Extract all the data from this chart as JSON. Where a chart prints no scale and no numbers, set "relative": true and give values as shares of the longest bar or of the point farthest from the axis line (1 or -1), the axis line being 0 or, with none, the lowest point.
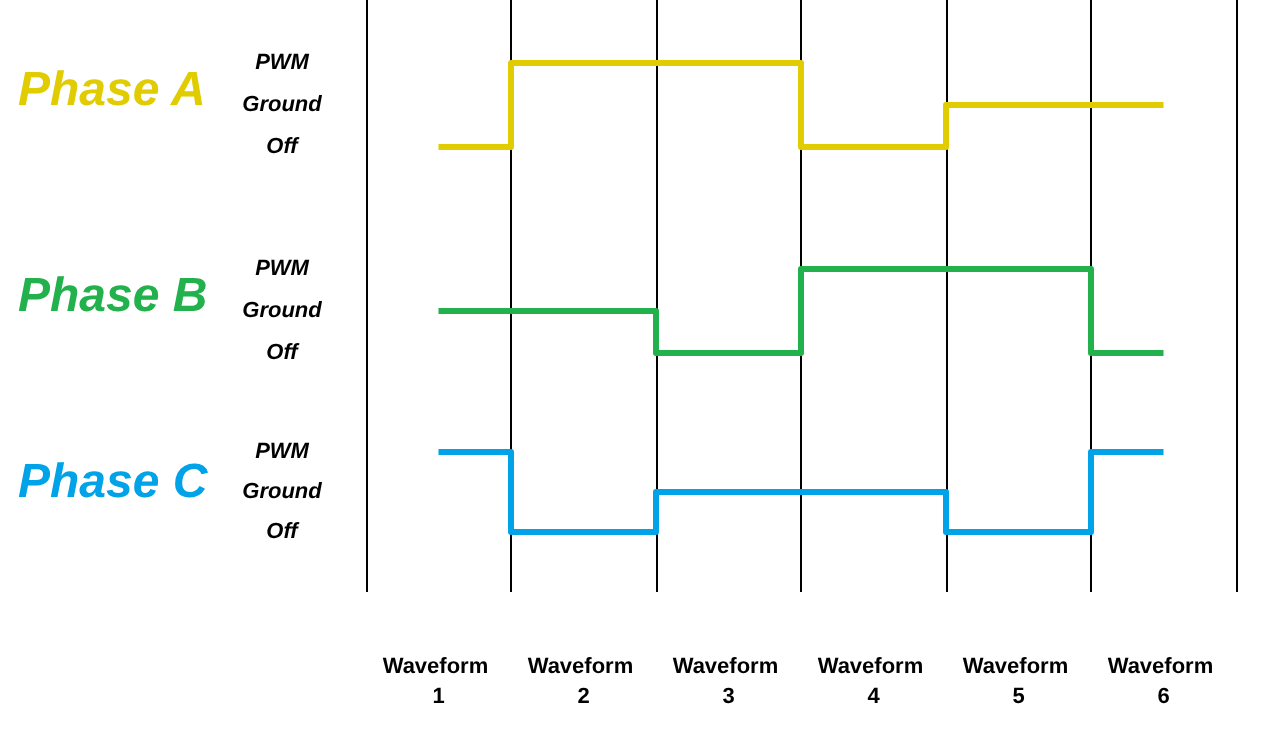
{
  "chart_data": [
    {
      "type": "step",
      "title": "Phase A",
      "categories": [
        "Waveform 1",
        "Waveform 2",
        "Waveform 3",
        "Waveform 4",
        "Waveform 5",
        "Waveform 6"
      ],
      "values": [
        0,
        1,
        1,
        0,
        0.5,
        0.5
      ],
      "relative": true,
      "color": "#e0cc00",
      "annotations": [
        "PWM",
        "Ground",
        "Off"
      ],
      "grid": "x",
      "tick_labels": false
    },
    {
      "type": "step",
      "title": "Phase B",
      "categories": [
        "Waveform 1",
        "Waveform 2",
        "Waveform 3",
        "Waveform 4",
        "Waveform 5",
        "Waveform 6"
      ],
      "values": [
        0.5,
        0.5,
        0,
        1,
        1,
        0
      ],
      "relative": true,
      "color": "#22b14c",
      "annotations": [
        "PWM",
        "Ground",
        "Off"
      ],
      "grid": "x",
      "tick_labels": false
    },
    {
      "type": "step",
      "title": "Phase C",
      "categories": [
        "Waveform 1",
        "Waveform 2",
        "Waveform 3",
        "Waveform 4",
        "Waveform 5",
        "Waveform 6"
      ],
      "values": [
        1,
        0,
        0.5,
        0.5,
        0,
        1
      ],
      "relative": true,
      "color": "#00a2e8",
      "annotations": [
        "PWM",
        "Ground",
        "Off"
      ],
      "grid": "x",
      "tick_labels": "x"
    }
  ]
}
